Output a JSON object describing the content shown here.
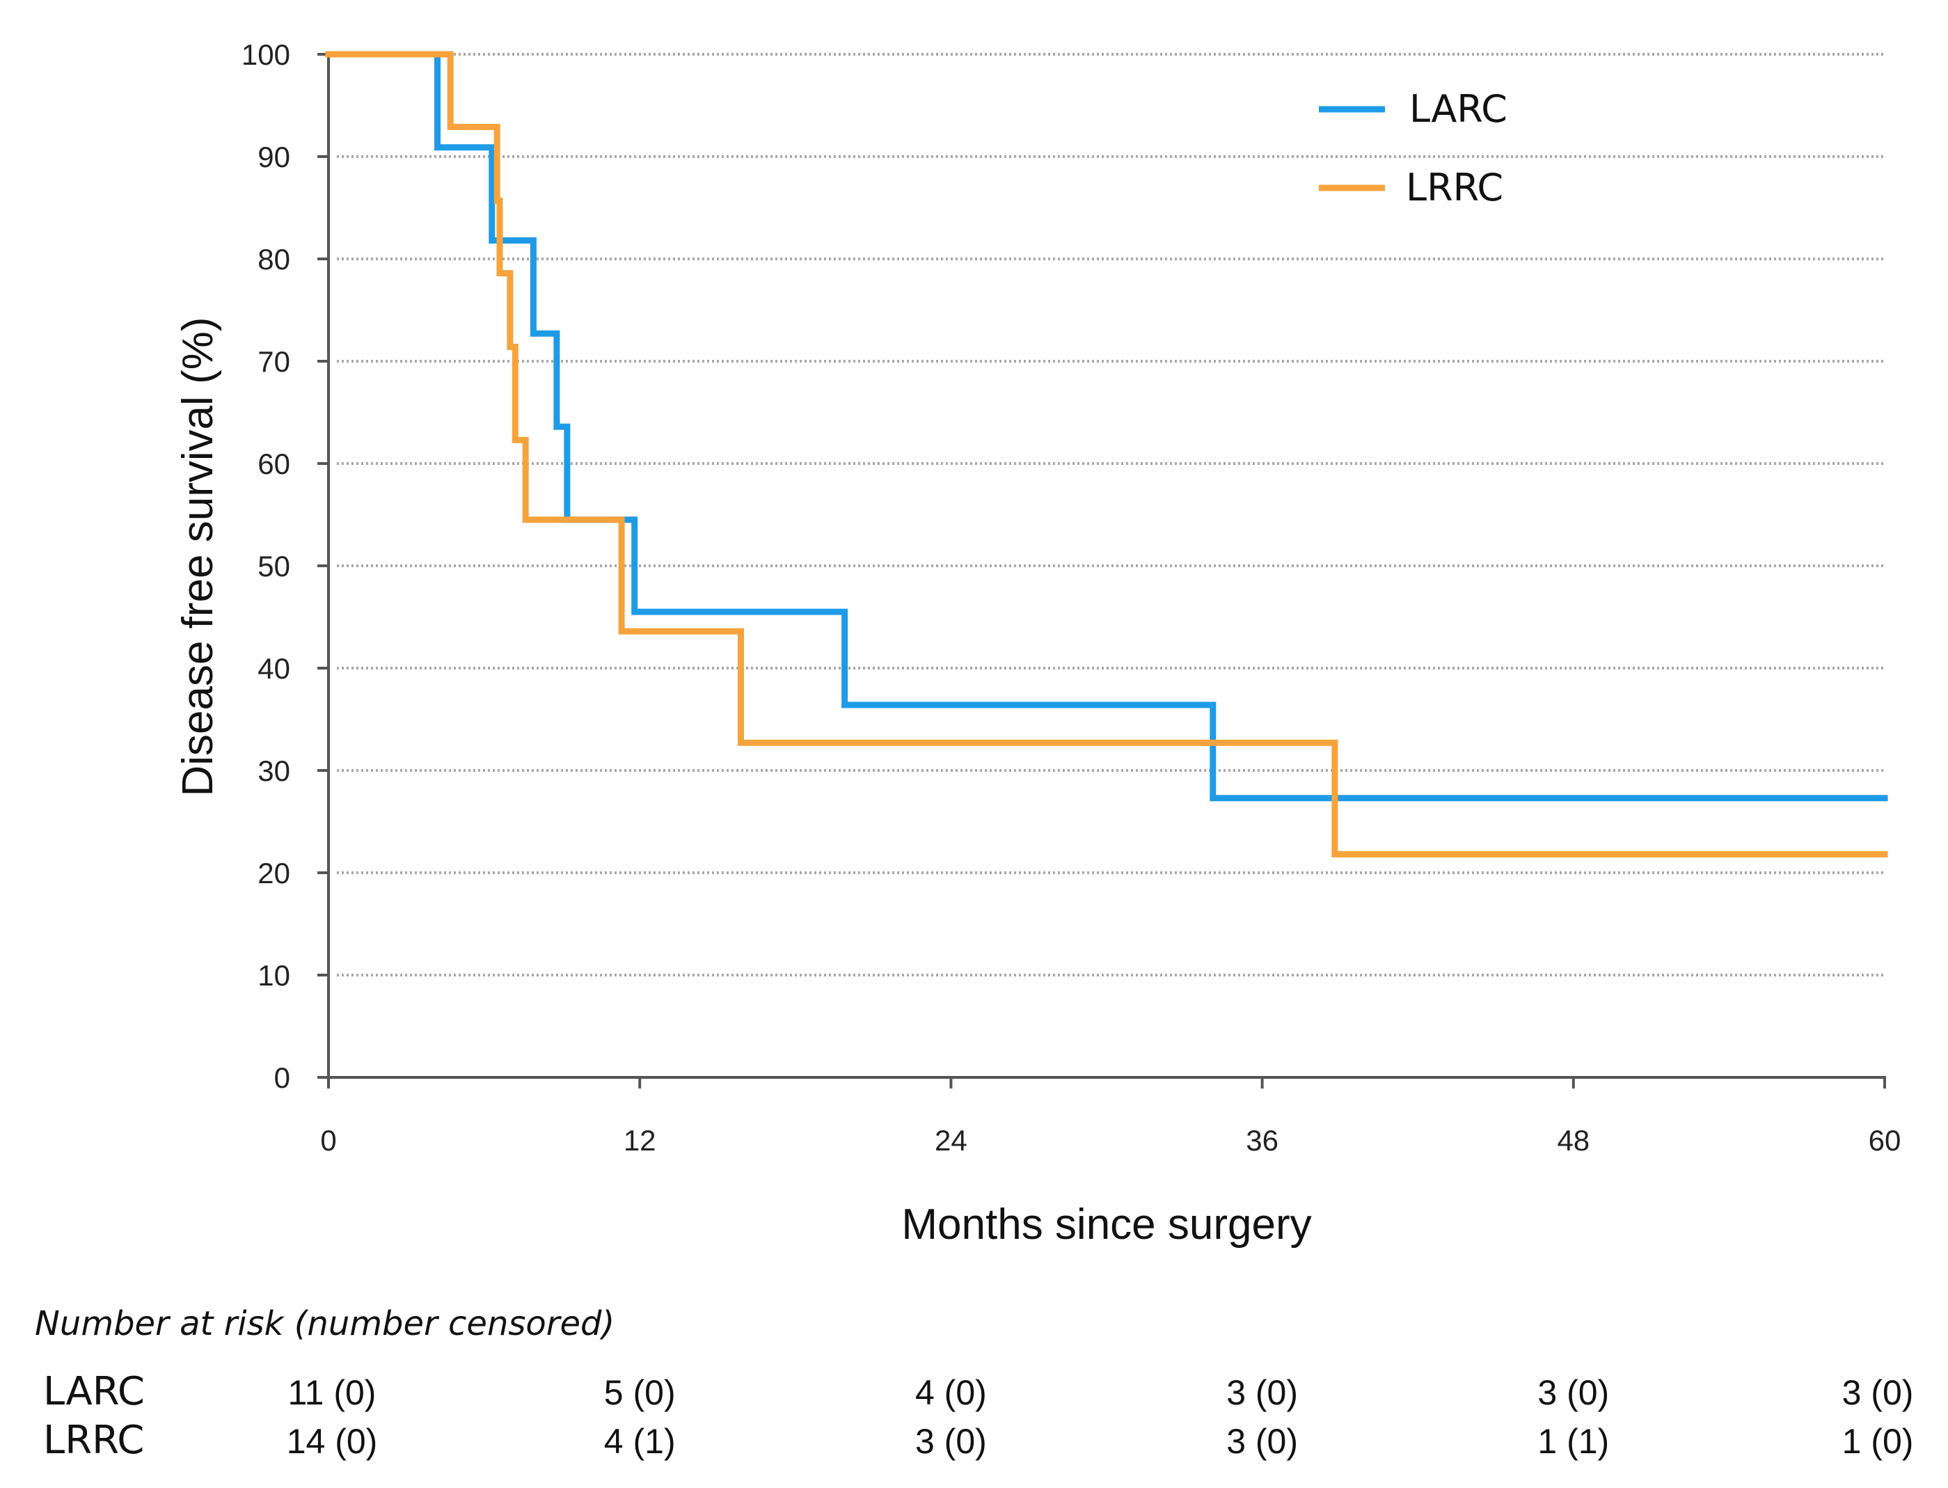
{
  "chart_data": {
    "type": "line",
    "subtype": "kaplan-meier-step",
    "title": "",
    "xlabel": "Months since surgery",
    "ylabel": "Disease free survival  (%)",
    "xlim": [
      0,
      60
    ],
    "ylim": [
      0,
      100
    ],
    "x_ticks": [
      0,
      12,
      24,
      36,
      48,
      60
    ],
    "y_ticks": [
      0,
      10,
      20,
      30,
      40,
      50,
      60,
      70,
      80,
      90,
      100
    ],
    "grid": "horizontal dotted",
    "legend_position": "top-right",
    "series": [
      {
        "name": "LARC",
        "color": "#1e9be6",
        "points": [
          [
            0,
            100
          ],
          [
            4.2,
            100
          ],
          [
            4.2,
            90.9
          ],
          [
            6.3,
            90.9
          ],
          [
            6.3,
            81.8
          ],
          [
            7.9,
            81.8
          ],
          [
            7.9,
            72.7
          ],
          [
            8.8,
            72.7
          ],
          [
            8.8,
            63.6
          ],
          [
            9.2,
            63.6
          ],
          [
            9.2,
            54.5
          ],
          [
            11.8,
            54.5
          ],
          [
            11.8,
            45.5
          ],
          [
            19.9,
            45.5
          ],
          [
            19.9,
            36.4
          ],
          [
            34.1,
            36.4
          ],
          [
            34.1,
            27.3
          ],
          [
            60,
            27.3
          ]
        ]
      },
      {
        "name": "LRRC",
        "color": "#f7a33c",
        "points": [
          [
            0,
            100
          ],
          [
            4.7,
            100
          ],
          [
            4.7,
            92.9
          ],
          [
            6.5,
            92.9
          ],
          [
            6.5,
            85.7
          ],
          [
            6.6,
            85.7
          ],
          [
            6.6,
            78.6
          ],
          [
            7.0,
            78.6
          ],
          [
            7.0,
            71.4
          ],
          [
            7.2,
            71.4
          ],
          [
            7.2,
            62.3
          ],
          [
            7.6,
            62.3
          ],
          [
            7.6,
            54.5
          ],
          [
            11.3,
            54.5
          ],
          [
            11.3,
            43.6
          ],
          [
            15.9,
            43.6
          ],
          [
            15.9,
            32.7
          ],
          [
            38.8,
            32.7
          ],
          [
            38.8,
            21.8
          ],
          [
            60,
            21.8
          ]
        ]
      }
    ],
    "risk_table": {
      "header": "Number at risk (number censored)",
      "months": [
        0,
        12,
        24,
        36,
        48,
        60
      ],
      "rows": [
        {
          "label": "LARC",
          "values": [
            "11 (0)",
            "5 (0)",
            "4 (0)",
            "3 (0)",
            "3 (0)",
            "3 (0)"
          ]
        },
        {
          "label": "LRRC",
          "values": [
            "14 (0)",
            "4 (1)",
            "3 (0)",
            "3 (0)",
            "1 (1)",
            "1 (0)"
          ]
        }
      ]
    }
  }
}
